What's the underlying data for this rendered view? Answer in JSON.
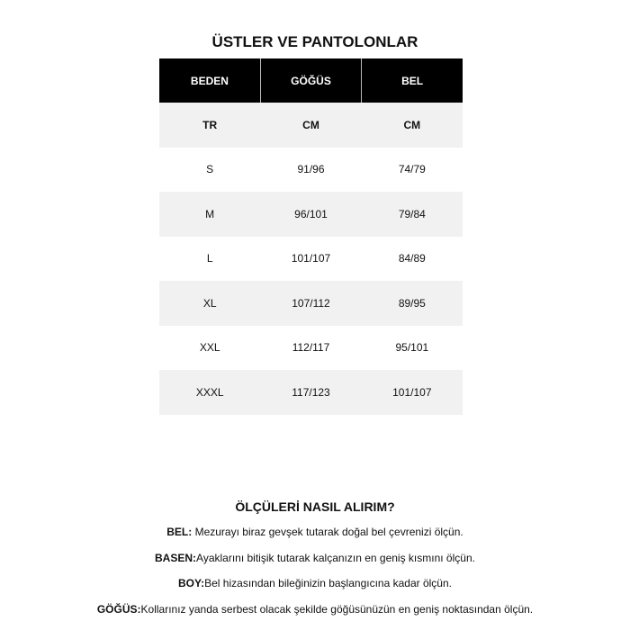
{
  "title": "ÜSTLER VE PANTOLONLAR",
  "table": {
    "headers": [
      "BEDEN",
      "GÖĞÜS",
      "BEL"
    ],
    "units": [
      "TR",
      "CM",
      "CM"
    ],
    "rows": [
      [
        "S",
        "91/96",
        "74/79"
      ],
      [
        "M",
        "96/101",
        "79/84"
      ],
      [
        "L",
        "101/107",
        "84/89"
      ],
      [
        "XL",
        "107/112",
        "89/95"
      ],
      [
        "XXL",
        "112/117",
        "95/101"
      ],
      [
        "XXXL",
        "117/123",
        "101/107"
      ]
    ]
  },
  "guide": {
    "heading": "ÖLÇÜLERİ NASIL ALIRIM?",
    "items": [
      {
        "label": "BEL:",
        "text": " Mezurayı biraz gevşek tutarak doğal bel çevrenizi ölçün."
      },
      {
        "label": "BASEN:",
        "text": "Ayaklarını bitişik tutarak kalçanızın en geniş kısmını ölçün."
      },
      {
        "label": "BOY:",
        "text": "Bel hizasından bileğinizin başlangıcına kadar ölçün."
      },
      {
        "label": "GÖĞÜS:",
        "text": "Kollarınız yanda serbest olacak şekilde göğüsünüzün en geniş noktasından ölçün."
      }
    ]
  }
}
